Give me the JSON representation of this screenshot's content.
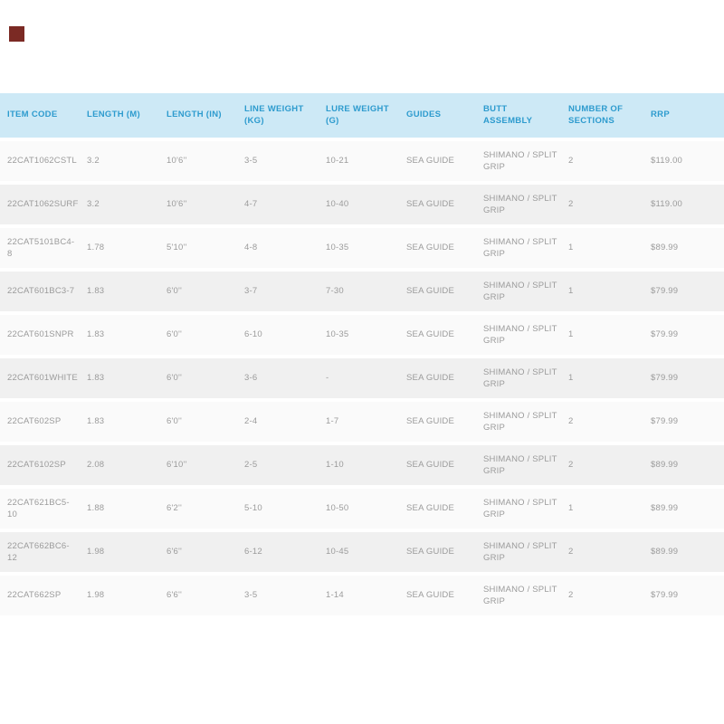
{
  "page": {
    "background": "#ffffff"
  },
  "logo": {
    "color": "#7b2a24"
  },
  "table": {
    "header_bg": "#cde9f6",
    "header_text_color": "#2d9bce",
    "body_text_color": "#9b9b9b",
    "row_bg_odd": "#fafafa",
    "row_bg_even": "#f0f0f0",
    "column_keys": [
      "item-code",
      "length-m",
      "length-in",
      "line-weight-kg",
      "lure-weight-g",
      "guides",
      "butt-assembly",
      "number-of-sections",
      "rrp"
    ],
    "columns": [
      "ITEM CODE",
      "LENGTH (M)",
      "LENGTH (IN)",
      "LINE WEIGHT\n(KG)",
      "LURE WEIGHT\n(G)",
      "GUIDES",
      "BUTT\nASSEMBLY",
      "NUMBER OF\nSECTIONS",
      "RRP"
    ],
    "rows": [
      [
        "22CAT1062CSTL",
        "3.2",
        "10'6''",
        "3-5",
        "10-21",
        "SEA GUIDE",
        "SHIMANO / SPLIT GRIP",
        "2",
        "$119.00"
      ],
      [
        "22CAT1062SURF",
        "3.2",
        "10'6''",
        "4-7",
        "10-40",
        "SEA GUIDE",
        "SHIMANO / SPLIT GRIP",
        "2",
        "$119.00"
      ],
      [
        "22CAT5101BC4-8",
        "1.78",
        "5'10''",
        "4-8",
        "10-35",
        "SEA GUIDE",
        "SHIMANO / SPLIT GRIP",
        "1",
        "$89.99"
      ],
      [
        "22CAT601BC3-7",
        "1.83",
        "6'0''",
        "3-7",
        "7-30",
        "SEA GUIDE",
        "SHIMANO / SPLIT GRIP",
        "1",
        "$79.99"
      ],
      [
        "22CAT601SNPR",
        "1.83",
        "6'0''",
        "6-10",
        "10-35",
        "SEA GUIDE",
        "SHIMANO / SPLIT GRIP",
        "1",
        "$79.99"
      ],
      [
        "22CAT601WHITE",
        "1.83",
        "6'0''",
        "3-6",
        "-",
        "SEA GUIDE",
        "SHIMANO / SPLIT GRIP",
        "1",
        "$79.99"
      ],
      [
        "22CAT602SP",
        "1.83",
        "6'0''",
        "2-4",
        "1-7",
        "SEA GUIDE",
        "SHIMANO / SPLIT GRIP",
        "2",
        "$79.99"
      ],
      [
        "22CAT6102SP",
        "2.08",
        "6'10''",
        "2-5",
        "1-10",
        "SEA GUIDE",
        "SHIMANO / SPLIT GRIP",
        "2",
        "$89.99"
      ],
      [
        "22CAT621BC5-10",
        "1.88",
        "6'2''",
        "5-10",
        "10-50",
        "SEA GUIDE",
        "SHIMANO / SPLIT GRIP",
        "1",
        "$89.99"
      ],
      [
        "22CAT662BC6-12",
        "1.98",
        "6'6''",
        "6-12",
        "10-45",
        "SEA GUIDE",
        "SHIMANO / SPLIT GRIP",
        "2",
        "$89.99"
      ],
      [
        "22CAT662SP",
        "1.98",
        "6'6''",
        "3-5",
        "1-14",
        "SEA GUIDE",
        "SHIMANO / SPLIT GRIP",
        "2",
        "$79.99"
      ]
    ]
  }
}
